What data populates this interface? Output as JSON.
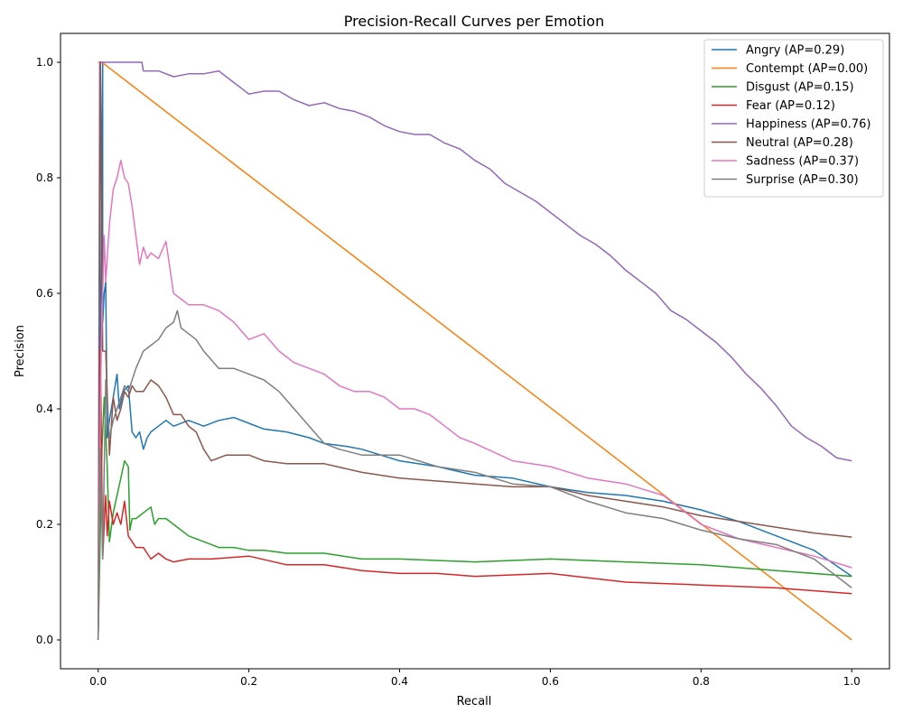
{
  "chart_data": {
    "type": "line",
    "title": "Precision-Recall Curves per Emotion",
    "xlabel": "Recall",
    "ylabel": "Precision",
    "xlim": [
      -0.05,
      1.05
    ],
    "ylim": [
      -0.05,
      1.05
    ],
    "x_ticks": [
      0.0,
      0.2,
      0.4,
      0.6,
      0.8,
      1.0
    ],
    "x_tick_labels": [
      "0.0",
      "0.2",
      "0.4",
      "0.6",
      "0.8",
      "1.0"
    ],
    "y_ticks": [
      0.0,
      0.2,
      0.4,
      0.6,
      0.8,
      1.0
    ],
    "y_tick_labels": [
      "0.0",
      "0.2",
      "0.4",
      "0.6",
      "0.8",
      "1.0"
    ],
    "grid": false,
    "legend_position": "top-right",
    "series": [
      {
        "name": "Angry (AP=0.29)",
        "color": "#1f77b4",
        "x": [
          0,
          0.003,
          0.006,
          0.006,
          0.008,
          0.01,
          0.012,
          0.015,
          0.02,
          0.025,
          0.028,
          0.033,
          0.04,
          0.045,
          0.05,
          0.055,
          0.06,
          0.065,
          0.07,
          0.08,
          0.09,
          0.1,
          0.12,
          0.14,
          0.16,
          0.18,
          0.2,
          0.22,
          0.25,
          0.28,
          0.3,
          0.33,
          0.35,
          0.4,
          0.45,
          0.5,
          0.55,
          0.6,
          0.65,
          0.7,
          0.75,
          0.8,
          0.85,
          0.9,
          0.95,
          1.0
        ],
        "y": [
          0.0,
          0.5,
          1.0,
          0.55,
          0.6,
          0.62,
          0.35,
          0.38,
          0.42,
          0.46,
          0.4,
          0.43,
          0.44,
          0.36,
          0.35,
          0.36,
          0.33,
          0.35,
          0.36,
          0.37,
          0.38,
          0.37,
          0.38,
          0.37,
          0.38,
          0.385,
          0.375,
          0.365,
          0.36,
          0.35,
          0.34,
          0.335,
          0.33,
          0.31,
          0.3,
          0.285,
          0.28,
          0.265,
          0.255,
          0.25,
          0.24,
          0.225,
          0.205,
          0.18,
          0.155,
          0.11
        ]
      },
      {
        "name": "Contempt (AP=0.00)",
        "color": "#ff7f0e",
        "x": [
          0,
          0.003,
          0.005,
          1.0
        ],
        "y": [
          1.0,
          1.0,
          1.0,
          0.0
        ]
      },
      {
        "name": "Disgust (AP=0.15)",
        "color": "#2ca02c",
        "x": [
          0,
          0.005,
          0.008,
          0.01,
          0.012,
          0.015,
          0.02,
          0.025,
          0.03,
          0.035,
          0.04,
          0.042,
          0.045,
          0.05,
          0.06,
          0.07,
          0.075,
          0.08,
          0.09,
          0.1,
          0.12,
          0.14,
          0.16,
          0.18,
          0.2,
          0.22,
          0.25,
          0.3,
          0.35,
          0.4,
          0.5,
          0.6,
          0.7,
          0.8,
          0.9,
          1.0
        ],
        "y": [
          0.0,
          0.33,
          0.42,
          0.36,
          0.3,
          0.17,
          0.22,
          0.25,
          0.28,
          0.31,
          0.3,
          0.19,
          0.21,
          0.21,
          0.22,
          0.23,
          0.2,
          0.21,
          0.21,
          0.2,
          0.18,
          0.17,
          0.16,
          0.16,
          0.155,
          0.155,
          0.15,
          0.15,
          0.14,
          0.14,
          0.135,
          0.14,
          0.135,
          0.13,
          0.12,
          0.11
        ]
      },
      {
        "name": "Fear (AP=0.12)",
        "color": "#d62728",
        "x": [
          0,
          0.003,
          0.006,
          0.008,
          0.01,
          0.012,
          0.015,
          0.02,
          0.025,
          0.03,
          0.035,
          0.04,
          0.045,
          0.05,
          0.06,
          0.07,
          0.08,
          0.09,
          0.1,
          0.12,
          0.15,
          0.2,
          0.25,
          0.3,
          0.35,
          0.4,
          0.45,
          0.5,
          0.6,
          0.7,
          0.8,
          0.9,
          1.0
        ],
        "y": [
          0.0,
          0.5,
          0.14,
          0.2,
          0.25,
          0.18,
          0.24,
          0.2,
          0.22,
          0.2,
          0.24,
          0.18,
          0.17,
          0.16,
          0.16,
          0.14,
          0.15,
          0.14,
          0.135,
          0.14,
          0.14,
          0.145,
          0.13,
          0.13,
          0.12,
          0.115,
          0.115,
          0.11,
          0.115,
          0.1,
          0.095,
          0.09,
          0.08
        ]
      },
      {
        "name": "Happiness (AP=0.76)",
        "color": "#9467bd",
        "x": [
          0,
          0.002,
          0.005,
          0.02,
          0.04,
          0.058,
          0.06,
          0.08,
          0.1,
          0.12,
          0.14,
          0.16,
          0.18,
          0.2,
          0.22,
          0.24,
          0.26,
          0.28,
          0.3,
          0.32,
          0.34,
          0.36,
          0.38,
          0.4,
          0.42,
          0.44,
          0.46,
          0.48,
          0.5,
          0.52,
          0.54,
          0.56,
          0.58,
          0.6,
          0.62,
          0.64,
          0.66,
          0.68,
          0.7,
          0.72,
          0.74,
          0.76,
          0.78,
          0.8,
          0.82,
          0.84,
          0.86,
          0.88,
          0.9,
          0.92,
          0.94,
          0.96,
          0.98,
          1.0
        ],
        "y": [
          0.0,
          1.0,
          1.0,
          1.0,
          1.0,
          1.0,
          0.985,
          0.985,
          0.975,
          0.98,
          0.98,
          0.985,
          0.965,
          0.945,
          0.95,
          0.95,
          0.935,
          0.925,
          0.93,
          0.92,
          0.915,
          0.905,
          0.89,
          0.88,
          0.875,
          0.875,
          0.86,
          0.85,
          0.83,
          0.815,
          0.79,
          0.775,
          0.76,
          0.74,
          0.72,
          0.7,
          0.685,
          0.665,
          0.64,
          0.62,
          0.6,
          0.57,
          0.555,
          0.535,
          0.515,
          0.49,
          0.46,
          0.435,
          0.405,
          0.37,
          0.35,
          0.335,
          0.315,
          0.31
        ]
      },
      {
        "name": "Neutral (AP=0.28)",
        "color": "#8c564b",
        "x": [
          0,
          0.003,
          0.006,
          0.01,
          0.015,
          0.02,
          0.025,
          0.03,
          0.035,
          0.04,
          0.045,
          0.05,
          0.06,
          0.07,
          0.08,
          0.09,
          0.1,
          0.11,
          0.12,
          0.13,
          0.14,
          0.15,
          0.17,
          0.2,
          0.22,
          0.25,
          0.3,
          0.35,
          0.4,
          0.45,
          0.5,
          0.55,
          0.6,
          0.65,
          0.7,
          0.75,
          0.8,
          0.85,
          0.9,
          0.95,
          1.0
        ],
        "y": [
          0.0,
          1.0,
          0.5,
          0.5,
          0.32,
          0.42,
          0.38,
          0.4,
          0.43,
          0.42,
          0.44,
          0.43,
          0.43,
          0.45,
          0.44,
          0.42,
          0.39,
          0.39,
          0.37,
          0.36,
          0.33,
          0.31,
          0.32,
          0.32,
          0.31,
          0.305,
          0.305,
          0.29,
          0.28,
          0.275,
          0.27,
          0.265,
          0.265,
          0.25,
          0.24,
          0.23,
          0.215,
          0.205,
          0.195,
          0.185,
          0.178
        ]
      },
      {
        "name": "Sadness (AP=0.37)",
        "color": "#e377c2",
        "x": [
          0,
          0.002,
          0.004,
          0.006,
          0.008,
          0.01,
          0.015,
          0.02,
          0.025,
          0.03,
          0.035,
          0.04,
          0.045,
          0.05,
          0.055,
          0.06,
          0.065,
          0.07,
          0.08,
          0.09,
          0.1,
          0.11,
          0.12,
          0.14,
          0.16,
          0.18,
          0.2,
          0.22,
          0.24,
          0.26,
          0.28,
          0.3,
          0.32,
          0.34,
          0.36,
          0.38,
          0.4,
          0.42,
          0.44,
          0.46,
          0.48,
          0.5,
          0.55,
          0.6,
          0.65,
          0.7,
          0.75,
          0.8,
          0.85,
          0.9,
          0.95,
          1.0
        ],
        "y": [
          0.0,
          0.3,
          0.5,
          0.6,
          0.7,
          0.62,
          0.72,
          0.78,
          0.8,
          0.83,
          0.8,
          0.79,
          0.75,
          0.7,
          0.65,
          0.68,
          0.66,
          0.67,
          0.66,
          0.69,
          0.6,
          0.59,
          0.58,
          0.58,
          0.57,
          0.55,
          0.52,
          0.53,
          0.5,
          0.48,
          0.47,
          0.46,
          0.44,
          0.43,
          0.43,
          0.42,
          0.4,
          0.4,
          0.39,
          0.37,
          0.35,
          0.34,
          0.31,
          0.3,
          0.28,
          0.27,
          0.25,
          0.2,
          0.175,
          0.16,
          0.145,
          0.125
        ]
      },
      {
        "name": "Surprise (AP=0.30)",
        "color": "#7f7f7f",
        "x": [
          0,
          0.003,
          0.006,
          0.01,
          0.015,
          0.02,
          0.025,
          0.03,
          0.035,
          0.04,
          0.045,
          0.05,
          0.06,
          0.07,
          0.08,
          0.09,
          0.1,
          0.105,
          0.11,
          0.12,
          0.13,
          0.14,
          0.16,
          0.18,
          0.2,
          0.22,
          0.24,
          0.26,
          0.28,
          0.3,
          0.32,
          0.35,
          0.4,
          0.45,
          0.5,
          0.55,
          0.6,
          0.65,
          0.7,
          0.75,
          0.8,
          0.85,
          0.9,
          0.95,
          1.0
        ],
        "y": [
          0.0,
          0.33,
          0.14,
          0.45,
          0.35,
          0.38,
          0.4,
          0.42,
          0.44,
          0.43,
          0.45,
          0.47,
          0.5,
          0.51,
          0.52,
          0.54,
          0.55,
          0.57,
          0.54,
          0.53,
          0.52,
          0.5,
          0.47,
          0.47,
          0.46,
          0.45,
          0.43,
          0.4,
          0.37,
          0.34,
          0.33,
          0.32,
          0.32,
          0.3,
          0.29,
          0.27,
          0.265,
          0.24,
          0.22,
          0.21,
          0.19,
          0.175,
          0.165,
          0.14,
          0.09
        ]
      }
    ]
  }
}
